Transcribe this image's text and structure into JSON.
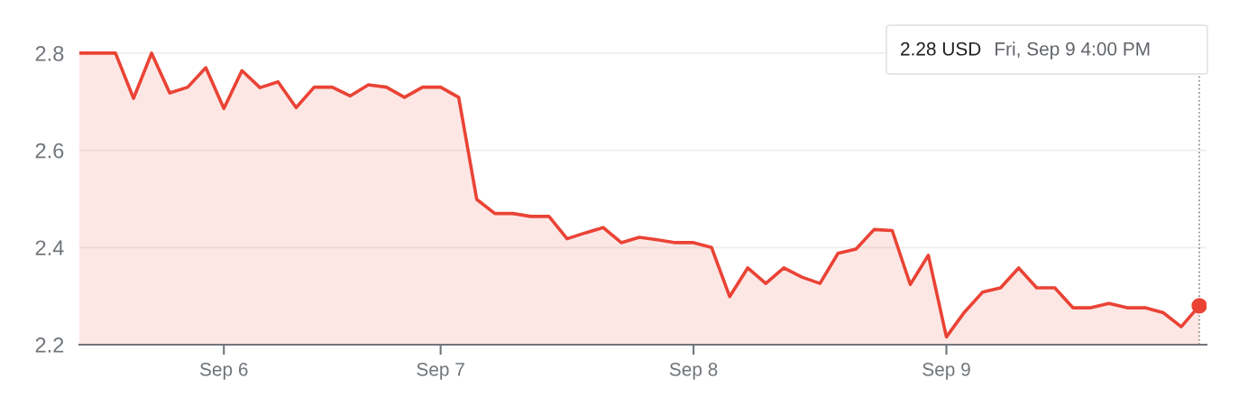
{
  "chart_data": {
    "type": "area",
    "categories": [
      null,
      null,
      null,
      null,
      null,
      null,
      null,
      null,
      "Sep 6",
      null,
      null,
      null,
      null,
      null,
      null,
      null,
      null,
      null,
      null,
      null,
      "Sep 7",
      null,
      null,
      null,
      null,
      null,
      null,
      null,
      null,
      null,
      null,
      null,
      null,
      null,
      "Sep 8",
      null,
      null,
      null,
      null,
      null,
      null,
      null,
      null,
      null,
      null,
      null,
      null,
      null,
      "Sep 9",
      null,
      null,
      null,
      null,
      null,
      null,
      null,
      null,
      null,
      null,
      null,
      null,
      null,
      null
    ],
    "series": [
      {
        "color": "#ea4335",
        "values": [
          2.8,
          2.8,
          2.8,
          2.707,
          2.8,
          2.718,
          2.73,
          2.77,
          2.686,
          2.764,
          2.729,
          2.741,
          2.688,
          2.73,
          2.73,
          2.712,
          2.735,
          2.73,
          2.709,
          2.73,
          2.73,
          2.709,
          2.499,
          2.47,
          2.47,
          2.464,
          2.464,
          2.418,
          2.43,
          2.441,
          2.41,
          2.421,
          2.416,
          2.41,
          2.41,
          2.4,
          2.299,
          2.358,
          2.326,
          2.358,
          2.339,
          2.326,
          2.388,
          2.397,
          2.437,
          2.435,
          2.324,
          2.384,
          2.216,
          2.267,
          2.308,
          2.317,
          2.358,
          2.317,
          2.317,
          2.276,
          2.276,
          2.285,
          2.276,
          2.276,
          2.266,
          2.237,
          2.28
        ]
      }
    ],
    "ylim": [
      2.2,
      2.85
    ],
    "yticks": [
      2.2,
      2.4,
      2.6,
      2.8
    ],
    "grid": "y",
    "marker": "none",
    "line_style": "solid",
    "annotations": [
      "2.28 USD",
      "Fri, Sep 9 4:00 PM"
    ]
  }
}
